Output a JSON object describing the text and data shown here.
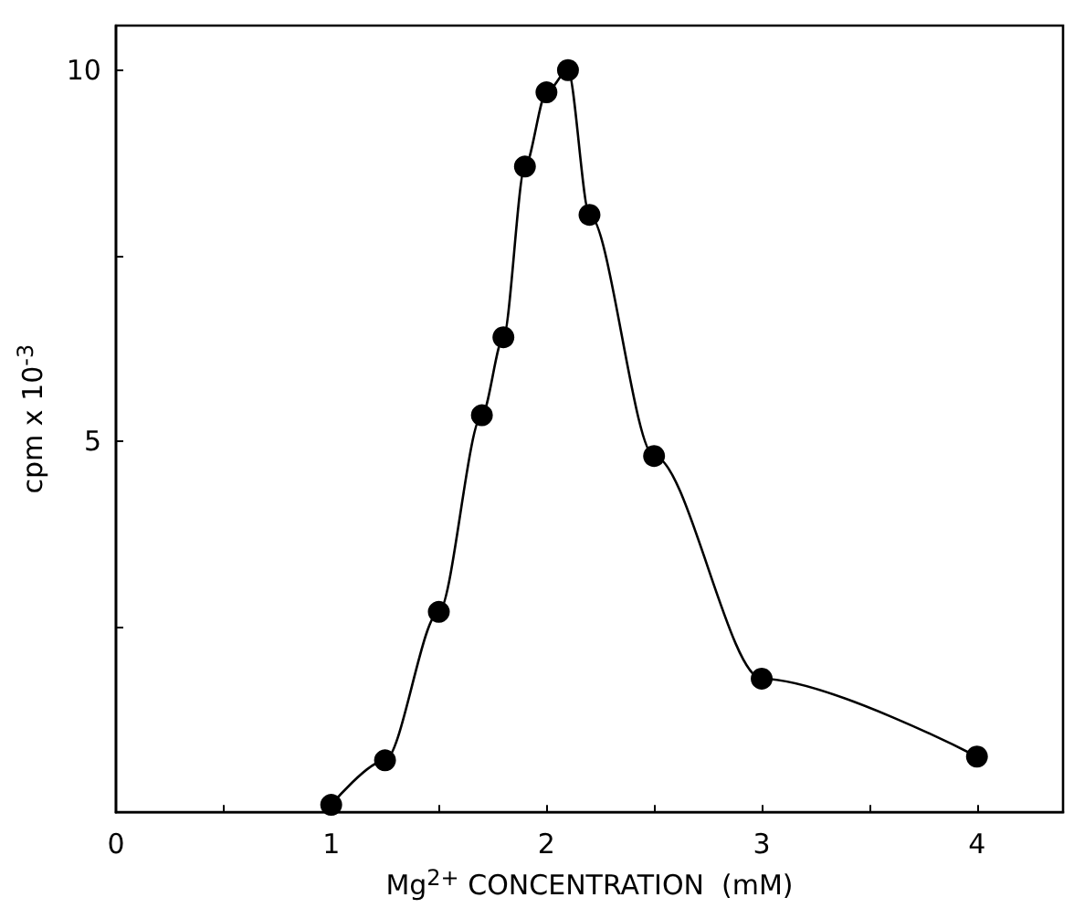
{
  "chart_data": {
    "type": "line",
    "xlabel": "Mg$^{2+}$ CONCENTRATION  (mM)",
    "ylabel": "cpm x 10$^{-3}$",
    "x": [
      1.0,
      1.25,
      1.5,
      1.7,
      1.8,
      1.9,
      2.0,
      2.1,
      2.2,
      2.5,
      3.0,
      4.0
    ],
    "series": [
      {
        "color": "#000000",
        "values": [
          0.1,
          0.7,
          2.7,
          5.35,
          6.4,
          8.7,
          9.7,
          10.0,
          8.05,
          4.8,
          1.8,
          0.75
        ]
      }
    ],
    "xlim": [
      0,
      4.4
    ],
    "ylim": [
      0,
      10.6
    ],
    "xticks": [
      0,
      {
        "value": 0.5,
        "label": null
      },
      1,
      {
        "value": 1.5,
        "label": null
      },
      2,
      {
        "value": 2.5,
        "label": null
      },
      3,
      {
        "value": 3.5,
        "label": null
      },
      4
    ],
    "yticks": [
      {
        "value": 0,
        "label": null
      },
      {
        "value": 2.5,
        "label": null
      },
      5,
      {
        "value": 7.5,
        "label": null
      },
      10
    ],
    "grid": false,
    "marker": "circle",
    "line_style": "solid"
  }
}
